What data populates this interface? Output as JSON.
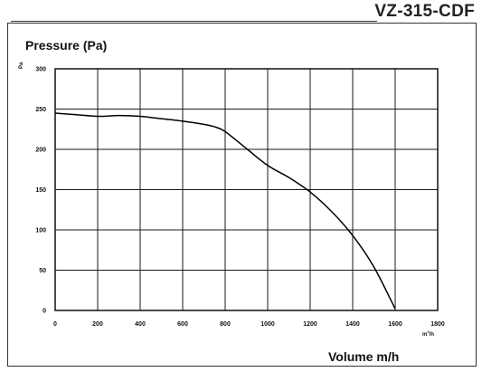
{
  "header": {
    "model": "VZ-315-CDF"
  },
  "chart_data": {
    "type": "line",
    "title": "VZ-315-CDF",
    "ylabel": "Pressure (Pa)",
    "xlabel": "Volume m/h",
    "y_unit": "Pa",
    "x_unit_base": "m",
    "x_unit_exp": "3",
    "x_unit_tail": "/h",
    "xlim": [
      0,
      1800
    ],
    "ylim": [
      0,
      300
    ],
    "xticks": [
      0,
      200,
      400,
      600,
      800,
      1000,
      1200,
      1400,
      1600,
      1800
    ],
    "yticks": [
      0,
      50,
      100,
      150,
      200,
      250,
      300
    ],
    "grid": true,
    "series": [
      {
        "x": [
          0,
          100,
          200,
          300,
          400,
          500,
          600,
          700,
          750,
          800,
          900,
          1000,
          1100,
          1200,
          1300,
          1400,
          1500,
          1600
        ],
        "y": [
          245,
          243,
          241,
          242,
          241,
          238,
          235,
          231,
          228,
          222,
          201,
          180,
          165,
          147,
          123,
          93,
          54,
          2
        ],
        "color": "#000000"
      }
    ]
  }
}
